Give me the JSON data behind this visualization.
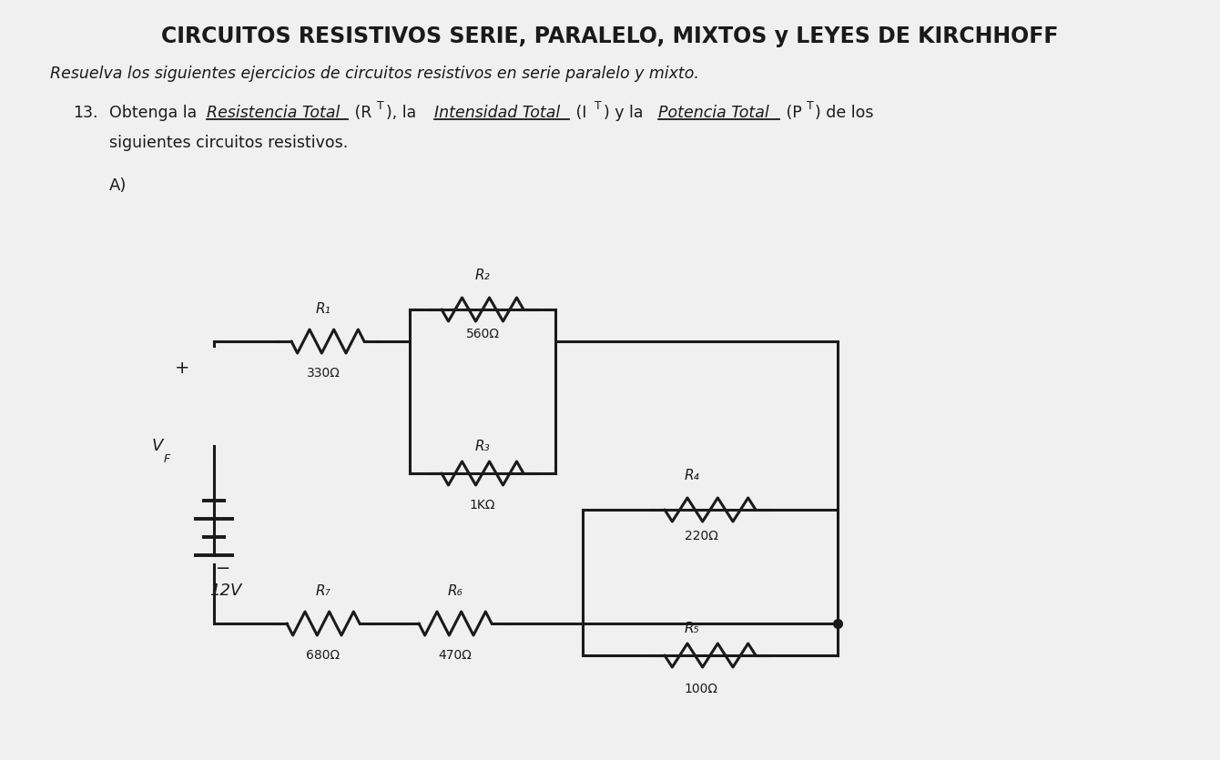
{
  "title": "CIRCUITOS RESISTIVOS SERIE, PARALELO, MIXTOS y LEYES DE KIRCHHOFF",
  "subtitle": "Resuelva los siguientes ejercicios de circuitos resistivos en serie paralelo y mixto.",
  "problem_num": "13.",
  "problem_intro": "Obtenga la ",
  "rt_text": "Resistencia Total",
  "it_text": "Intensidad Total",
  "pt_text": "Potencia Total",
  "problem_end": ") de los",
  "problem_line2": "siguientes circuitos resistivos.",
  "label_A": "A)",
  "bg_color": "#f0f0f0",
  "line_color": "#1a1a1a",
  "text_color": "#1a1a1a",
  "voltage": "12V",
  "plus_label": "+",
  "minus_label": "−",
  "vf_label": "V",
  "vf_sub": "F",
  "R1_label": "R₁",
  "R1_val": "330Ω",
  "R2_label": "R₂",
  "R2_val": "560Ω",
  "R3_label": "R₃",
  "R3_val": "1KΩ",
  "R4_label": "R₄",
  "R4_val": "220Ω",
  "R5_label": "R₅",
  "R5_val": "100Ω",
  "R6_label": "R₆",
  "R6_val": "470Ω",
  "R7_label": "R₇",
  "R7_val": "680Ω"
}
